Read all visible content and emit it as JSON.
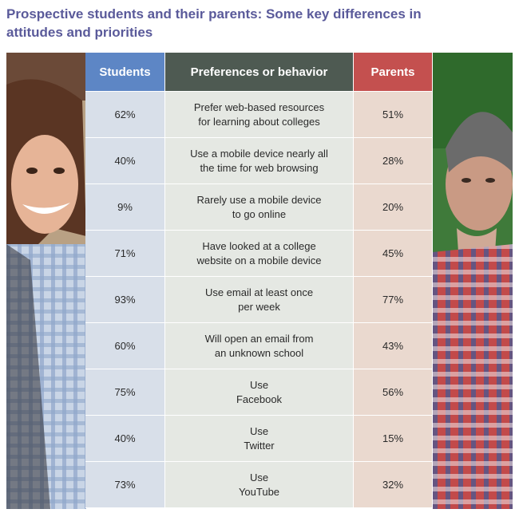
{
  "title_lines": [
    "Prospective students and their parents: Some key differences in",
    "attitudes and priorities"
  ],
  "headers": {
    "students": "Students",
    "middle": "Preferences or behavior",
    "parents": "Parents"
  },
  "colors": {
    "title": "#5a5a9a",
    "students_header": "#5d86c5",
    "middle_header": "#4e5a52",
    "parents_header": "#c4504f",
    "students_cell": "#d8dfe9",
    "middle_cell": "#e5e8e3",
    "parents_cell": "#ead9cf"
  },
  "chart_data": {
    "type": "table",
    "columns": [
      "Students",
      "Preferences or behavior",
      "Parents"
    ],
    "rows": [
      {
        "students": "62%",
        "behavior": [
          "Prefer web-based resources",
          "for learning about colleges"
        ],
        "parents": "51%"
      },
      {
        "students": "40%",
        "behavior": [
          "Use a mobile device nearly all",
          "the time for web browsing"
        ],
        "parents": "28%"
      },
      {
        "students": "9%",
        "behavior": [
          "Rarely use a mobile device",
          "to go online"
        ],
        "parents": "20%"
      },
      {
        "students": "71%",
        "behavior": [
          "Have looked at a college",
          "website on a mobile device"
        ],
        "parents": "45%"
      },
      {
        "students": "93%",
        "behavior": [
          "Use email at least once",
          "per week"
        ],
        "parents": "77%"
      },
      {
        "students": "60%",
        "behavior": [
          "Will open an email from",
          "an unknown school"
        ],
        "parents": "43%"
      },
      {
        "students": "75%",
        "behavior": [
          "Use",
          "Facebook"
        ],
        "parents": "56%"
      },
      {
        "students": "40%",
        "behavior": [
          "Use",
          "Twitter"
        ],
        "parents": "15%"
      },
      {
        "students": "73%",
        "behavior": [
          "Use",
          "YouTube"
        ],
        "parents": "32%"
      }
    ]
  }
}
